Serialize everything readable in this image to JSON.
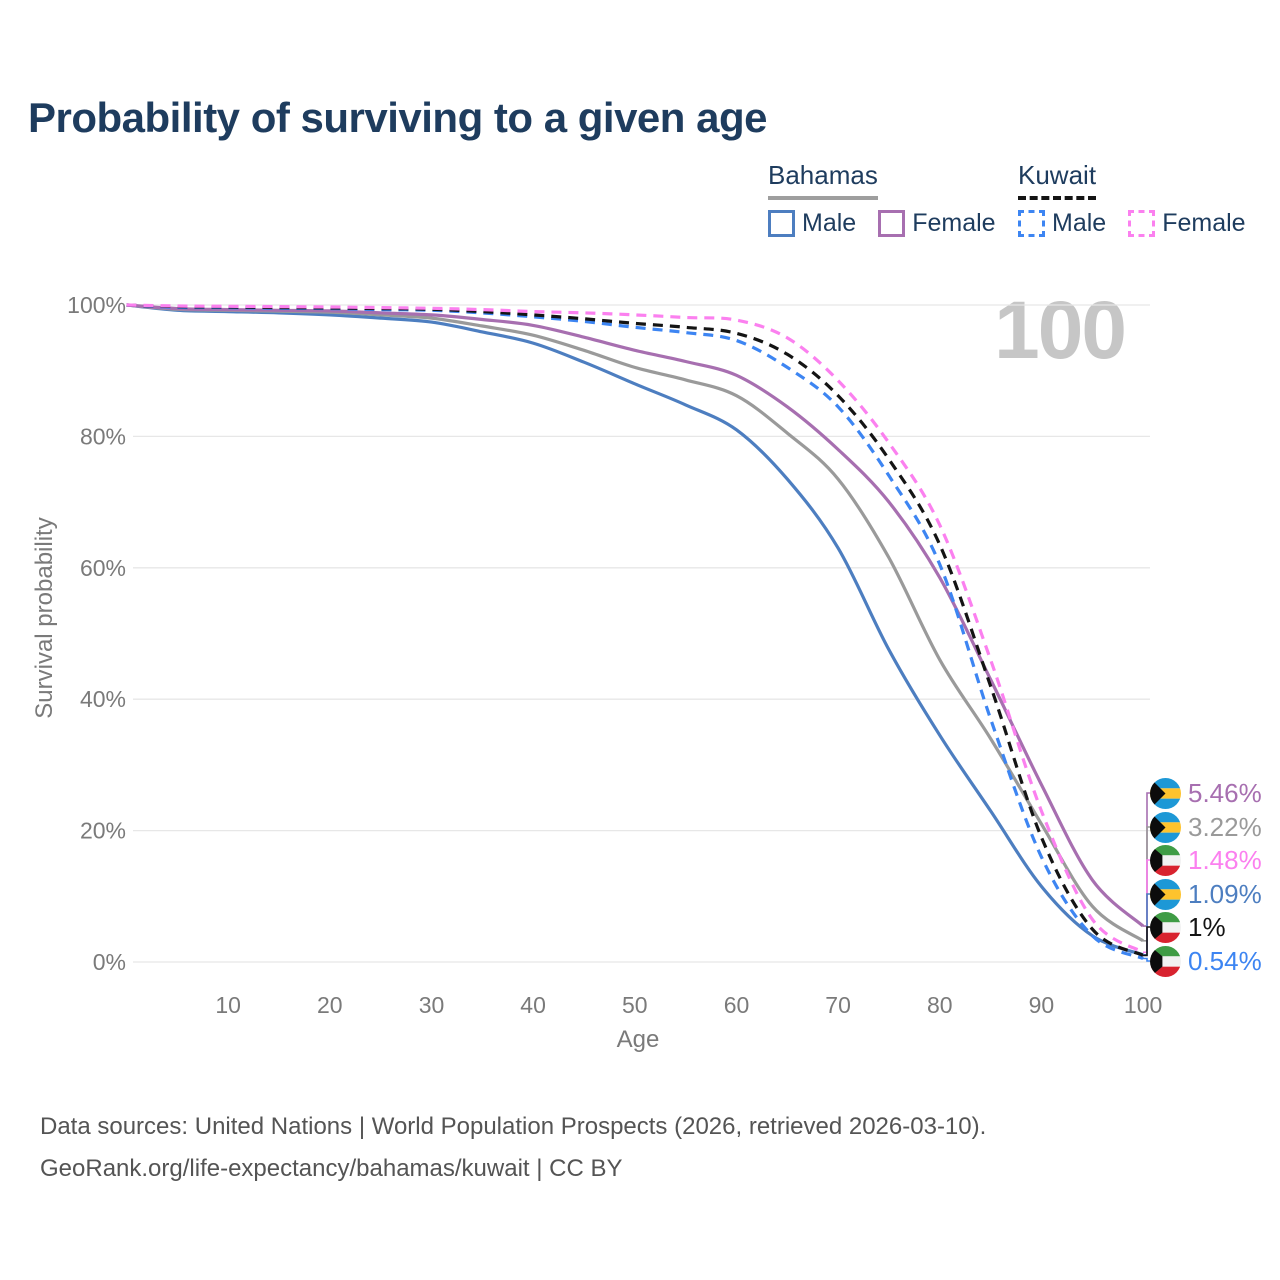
{
  "title": "Probability of surviving to a given age",
  "watermark": "100",
  "legend": {
    "groups": [
      {
        "label": "Bahamas",
        "line_style": "solid",
        "line_color": "#9e9e9e",
        "items": [
          {
            "label": "Male",
            "color": "#4d7ec0",
            "dash": false
          },
          {
            "label": "Female",
            "color": "#a76fb0",
            "dash": false
          }
        ]
      },
      {
        "label": "Kuwait",
        "line_style": "dashed",
        "line_color": "#141414",
        "items": [
          {
            "label": "Male",
            "color": "#3d85f2",
            "dash": true
          },
          {
            "label": "Female",
            "color": "#fb80ef",
            "dash": true
          }
        ]
      }
    ]
  },
  "chart_data": {
    "type": "line",
    "title": "Probability of surviving to a given age",
    "xlabel": "Age",
    "ylabel": "Survival probability",
    "xlim": [
      0,
      100
    ],
    "ylim": [
      0,
      100
    ],
    "grid": "horizontal",
    "x_ticks": [
      {
        "value": 10,
        "label": "10"
      },
      {
        "value": 20,
        "label": "20"
      },
      {
        "value": 30,
        "label": "30"
      },
      {
        "value": 40,
        "label": "40"
      },
      {
        "value": 50,
        "label": "50"
      },
      {
        "value": 60,
        "label": "60"
      },
      {
        "value": 70,
        "label": "70"
      },
      {
        "value": 80,
        "label": "80"
      },
      {
        "value": 90,
        "label": "90"
      },
      {
        "value": 100,
        "label": "100"
      }
    ],
    "y_ticks": [
      {
        "value": 0,
        "label": "0%"
      },
      {
        "value": 20,
        "label": "20%"
      },
      {
        "value": 40,
        "label": "40%"
      },
      {
        "value": 60,
        "label": "60%"
      },
      {
        "value": 80,
        "label": "80%"
      },
      {
        "value": 100,
        "label": "100%"
      }
    ],
    "x": [
      0,
      5,
      10,
      15,
      20,
      25,
      30,
      35,
      40,
      45,
      50,
      55,
      60,
      65,
      70,
      75,
      80,
      85,
      90,
      95,
      100
    ],
    "series": [
      {
        "name": "Bahamas Male",
        "group": "Bahamas",
        "sex": "Male",
        "color": "#4d7ec0",
        "dash": false,
        "flag": "bahamas",
        "end_label": "1.09%",
        "values": [
          100,
          99.2,
          99.0,
          98.8,
          98.5,
          98.0,
          97.4,
          95.9,
          94.2,
          91.3,
          88.0,
          84.8,
          81.0,
          73.5,
          63.0,
          47.5,
          34.5,
          23.0,
          11.5,
          4.0,
          1.09
        ]
      },
      {
        "name": "Bahamas Both sexes",
        "group": "Bahamas",
        "sex": "Both",
        "color": "#9a9a9a",
        "dash": false,
        "flag": "bahamas",
        "end_label": "3.22%",
        "values": [
          100,
          99.35,
          99.2,
          99.05,
          98.9,
          98.5,
          98.0,
          96.8,
          95.4,
          93.1,
          90.5,
          88.6,
          86.2,
          80.5,
          73.5,
          61.5,
          46.0,
          34.0,
          21.0,
          8.5,
          3.22
        ]
      },
      {
        "name": "Bahamas Female",
        "group": "Bahamas",
        "sex": "Female",
        "color": "#a76fb0",
        "dash": false,
        "flag": "bahamas",
        "end_label": "5.46%",
        "values": [
          100,
          99.45,
          99.3,
          99.2,
          99.1,
          98.8,
          98.5,
          97.8,
          96.9,
          95.1,
          93.1,
          91.4,
          89.3,
          84.5,
          78.0,
          70.0,
          58.5,
          43.0,
          27.0,
          12.5,
          5.46
        ]
      },
      {
        "name": "Kuwait Male",
        "group": "Kuwait",
        "sex": "Male",
        "color": "#3d85f2",
        "dash": true,
        "flag": "kuwait",
        "end_label": "0.54%",
        "values": [
          100,
          99.65,
          99.6,
          99.5,
          99.45,
          99.3,
          99.2,
          98.8,
          98.2,
          97.5,
          96.6,
          95.8,
          94.6,
          90.5,
          84.5,
          74.0,
          60.5,
          37.0,
          16.0,
          4.0,
          0.54
        ]
      },
      {
        "name": "Kuwait Both sexes",
        "group": "Kuwait",
        "sex": "Both",
        "color": "#141414",
        "dash": true,
        "flag": "kuwait",
        "end_label": "1%",
        "values": [
          100,
          99.75,
          99.7,
          99.6,
          99.55,
          99.45,
          99.35,
          99.0,
          98.5,
          97.9,
          97.2,
          96.6,
          95.7,
          92.5,
          86.2,
          76.5,
          63.5,
          42.0,
          19.0,
          5.0,
          1.0
        ]
      },
      {
        "name": "Kuwait Female",
        "group": "Kuwait",
        "sex": "Female",
        "color": "#fb80ef",
        "dash": true,
        "flag": "kuwait",
        "end_label": "1.48%",
        "values": [
          100,
          99.85,
          99.8,
          99.75,
          99.7,
          99.6,
          99.5,
          99.3,
          99.0,
          98.8,
          98.5,
          98.1,
          97.7,
          95.0,
          88.5,
          79.0,
          66.5,
          46.0,
          23.0,
          6.5,
          1.48
        ]
      }
    ]
  },
  "footer": {
    "line1": "Data sources: United Nations | World Population Prospects (2026, retrieved 2026-03-10).",
    "line2": "GeoRank.org/life-expectancy/bahamas/kuwait | CC BY"
  }
}
